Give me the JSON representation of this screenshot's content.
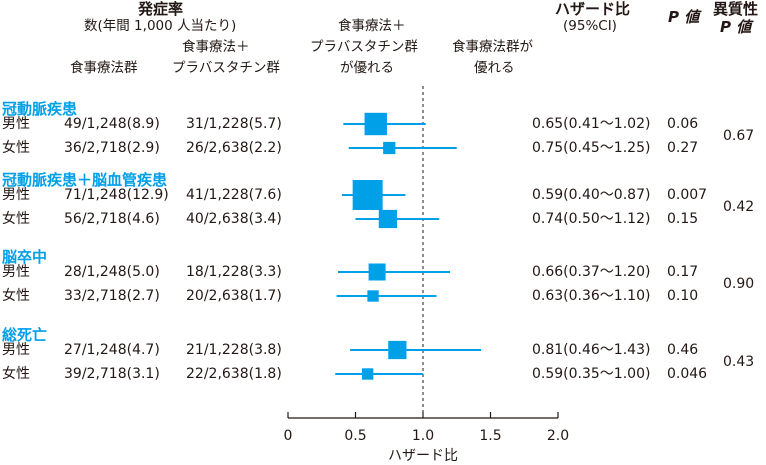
{
  "chart_data": {
    "type": "forest",
    "header": {
      "incidence_title": "発症率",
      "incidence_subtitle": "数(年間 1,000 人当たり)",
      "col_diet": "食事療法群",
      "col_combo_line1": "食事療法＋",
      "col_combo_line2": "プラバスタチン群",
      "favors_combo_line1": "食事療法＋",
      "favors_combo_line2": "プラバスタチン群",
      "favors_combo_line3": "が優れる",
      "favors_diet_line1": "食事療法群が",
      "favors_diet_line2": "優れる",
      "hr_title": "ハザード比",
      "hr_ci": "(95%CI)",
      "p_title": "P 値",
      "het_title_line1": "異質性",
      "het_title_line2": "P 値"
    },
    "x_axis": {
      "label": "ハザード比",
      "ticks": [
        "0",
        "0.5",
        "1.0",
        "1.5",
        "2.0"
      ],
      "range": [
        0,
        2.0
      ],
      "reference_line": 1.0
    },
    "colors": {
      "accent": "#00a0e9",
      "text": "#231815"
    },
    "groups": [
      {
        "name": "冠動脈疾患",
        "het_p": "0.67",
        "rows": [
          {
            "sex": "男性",
            "diet": "49/1,248(8.9)",
            "combo": "31/1,228(5.7)",
            "hr_text": "0.65(0.41～1.02)",
            "p": "0.06",
            "hr": 0.65,
            "lo": 0.41,
            "hi": 1.02,
            "weight": 0.5
          },
          {
            "sex": "女性",
            "diet": "36/2,718(2.9)",
            "combo": "26/2,638(2.2)",
            "hr_text": "0.75(0.45～1.25)",
            "p": "0.27",
            "hr": 0.75,
            "lo": 0.45,
            "hi": 1.25,
            "weight": 0.1
          }
        ]
      },
      {
        "name": "冠動脈疾患＋脳血管疾患",
        "het_p": "0.42",
        "rows": [
          {
            "sex": "男性",
            "diet": "71/1,248(12.9)",
            "combo": "41/1,228(7.6)",
            "hr_text": "0.59(0.40～0.87)",
            "p": "0.007",
            "hr": 0.59,
            "lo": 0.4,
            "hi": 0.87,
            "weight": 1.0
          },
          {
            "sex": "女性",
            "diet": "56/2,718(4.6)",
            "combo": "40/2,638(3.4)",
            "hr_text": "0.74(0.50～1.12)",
            "p": "0.15",
            "hr": 0.74,
            "lo": 0.5,
            "hi": 1.12,
            "weight": 0.3
          }
        ]
      },
      {
        "name": "脳卒中",
        "het_p": "0.90",
        "rows": [
          {
            "sex": "男性",
            "diet": "28/1,248(5.0)",
            "combo": "18/1,228(3.3)",
            "hr_text": "0.66(0.37～1.20)",
            "p": "0.17",
            "hr": 0.66,
            "lo": 0.37,
            "hi": 1.2,
            "weight": 0.25
          },
          {
            "sex": "女性",
            "diet": "33/2,718(2.7)",
            "combo": "20/2,638(1.7)",
            "hr_text": "0.63(0.36～1.10)",
            "p": "0.10",
            "hr": 0.63,
            "lo": 0.36,
            "hi": 1.1,
            "weight": 0.08
          }
        ]
      },
      {
        "name": "総死亡",
        "het_p": "0.43",
        "rows": [
          {
            "sex": "男性",
            "diet": "27/1,248(4.7)",
            "combo": "21/1,228(3.8)",
            "hr_text": "0.81(0.46～1.43)",
            "p": "0.46",
            "hr": 0.81,
            "lo": 0.46,
            "hi": 1.43,
            "weight": 0.3
          },
          {
            "sex": "女性",
            "diet": "39/2,718(3.1)",
            "combo": "22/2,638(1.8)",
            "hr_text": "0.59(0.35～1.00)",
            "p": "0.046",
            "hr": 0.59,
            "lo": 0.35,
            "hi": 1.0,
            "weight": 0.08
          }
        ]
      }
    ]
  }
}
